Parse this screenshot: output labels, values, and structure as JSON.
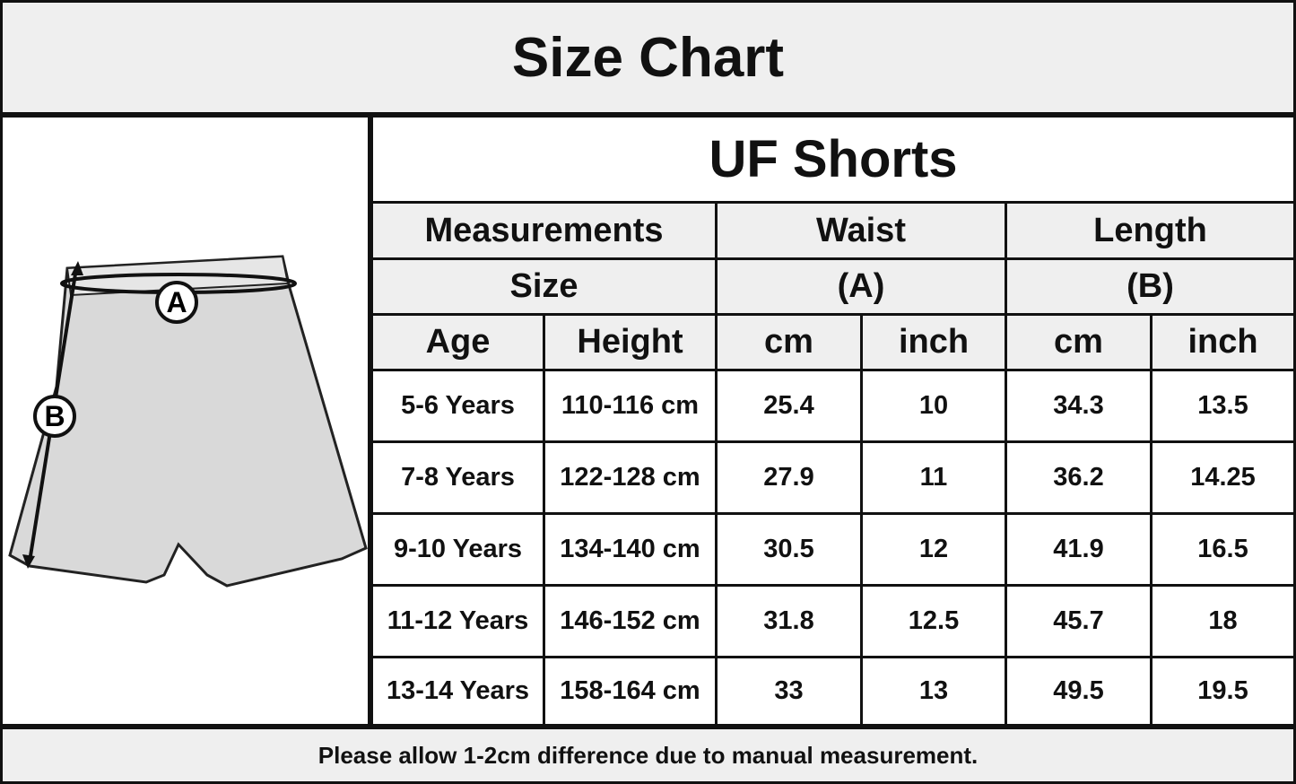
{
  "header": {
    "title": "Size Chart"
  },
  "diagram": {
    "labels": [
      "A",
      "B"
    ]
  },
  "table": {
    "title": "UF Shorts",
    "header_rows": [
      [
        "Measurements",
        "Waist",
        "Length"
      ],
      [
        "Size",
        "(A)",
        "(B)"
      ],
      [
        "Age",
        "Height",
        "cm",
        "inch",
        "cm",
        "inch"
      ]
    ],
    "rows": [
      [
        "5-6 Years",
        "110-116 cm",
        "25.4",
        "10",
        "34.3",
        "13.5"
      ],
      [
        "7-8 Years",
        "122-128 cm",
        "27.9",
        "11",
        "36.2",
        "14.25"
      ],
      [
        "9-10 Years",
        "134-140 cm",
        "30.5",
        "12",
        "41.9",
        "16.5"
      ],
      [
        "11-12 Years",
        "146-152 cm",
        "31.8",
        "12.5",
        "45.7",
        "18"
      ],
      [
        "13-14 Years",
        "158-164 cm",
        "33",
        "13",
        "49.5",
        "19.5"
      ]
    ]
  },
  "footer": {
    "note": "Please allow 1-2cm difference due to manual measurement."
  }
}
